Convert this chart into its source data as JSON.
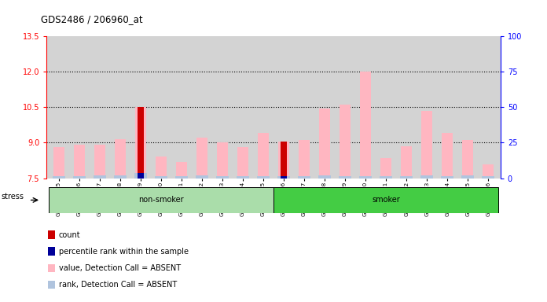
{
  "title": "GDS2486 / 206960_at",
  "samples": [
    "GSM101095",
    "GSM101096",
    "GSM101097",
    "GSM101098",
    "GSM101099",
    "GSM101100",
    "GSM101101",
    "GSM101102",
    "GSM101103",
    "GSM101104",
    "GSM101105",
    "GSM101106",
    "GSM101107",
    "GSM101108",
    "GSM101109",
    "GSM101110",
    "GSM101111",
    "GSM101112",
    "GSM101113",
    "GSM101114",
    "GSM101115",
    "GSM101116"
  ],
  "group": [
    "non-smoker",
    "non-smoker",
    "non-smoker",
    "non-smoker",
    "non-smoker",
    "non-smoker",
    "non-smoker",
    "non-smoker",
    "non-smoker",
    "non-smoker",
    "non-smoker",
    "smoker",
    "smoker",
    "smoker",
    "smoker",
    "smoker",
    "smoker",
    "smoker",
    "smoker",
    "smoker",
    "smoker",
    "smoker"
  ],
  "value_absent": [
    8.8,
    8.9,
    8.9,
    9.15,
    10.5,
    8.4,
    8.2,
    9.2,
    9.0,
    8.8,
    9.4,
    9.05,
    9.1,
    10.45,
    10.6,
    12.0,
    8.35,
    8.85,
    10.35,
    9.4,
    9.1,
    8.1
  ],
  "rank_absent": [
    7.58,
    7.58,
    7.62,
    7.62,
    7.73,
    7.6,
    7.58,
    7.62,
    7.58,
    7.58,
    7.58,
    7.58,
    7.58,
    7.62,
    7.58,
    7.58,
    7.6,
    7.58,
    7.62,
    7.6,
    7.62,
    7.58
  ],
  "count_bar": [
    null,
    null,
    null,
    null,
    10.5,
    null,
    null,
    null,
    null,
    null,
    null,
    9.05,
    null,
    null,
    null,
    null,
    null,
    null,
    null,
    null,
    null,
    null
  ],
  "percentile_bar": [
    null,
    null,
    null,
    null,
    7.73,
    null,
    null,
    null,
    null,
    null,
    null,
    7.58,
    null,
    null,
    null,
    null,
    null,
    null,
    null,
    null,
    null,
    null
  ],
  "ymin": 7.5,
  "ymax": 13.5,
  "yright_min": 0,
  "yright_max": 100,
  "yticks_left": [
    7.5,
    9.0,
    10.5,
    12.0,
    13.5
  ],
  "yticks_right": [
    0,
    25,
    50,
    75,
    100
  ],
  "dotted_lines": [
    9.0,
    10.5,
    12.0
  ],
  "bg_color": "#d3d3d3",
  "non_smoker_color": "#aaddaa",
  "smoker_color": "#44cc44",
  "absent_value_color": "#ffb6c1",
  "absent_rank_color": "#b0c4de",
  "count_color": "#cc0000",
  "percentile_color": "#000099",
  "legend_items": [
    {
      "color": "#cc0000",
      "label": "count"
    },
    {
      "color": "#000099",
      "label": "percentile rank within the sample"
    },
    {
      "color": "#ffb6c1",
      "label": "value, Detection Call = ABSENT"
    },
    {
      "color": "#b0c4de",
      "label": "rank, Detection Call = ABSENT"
    }
  ]
}
